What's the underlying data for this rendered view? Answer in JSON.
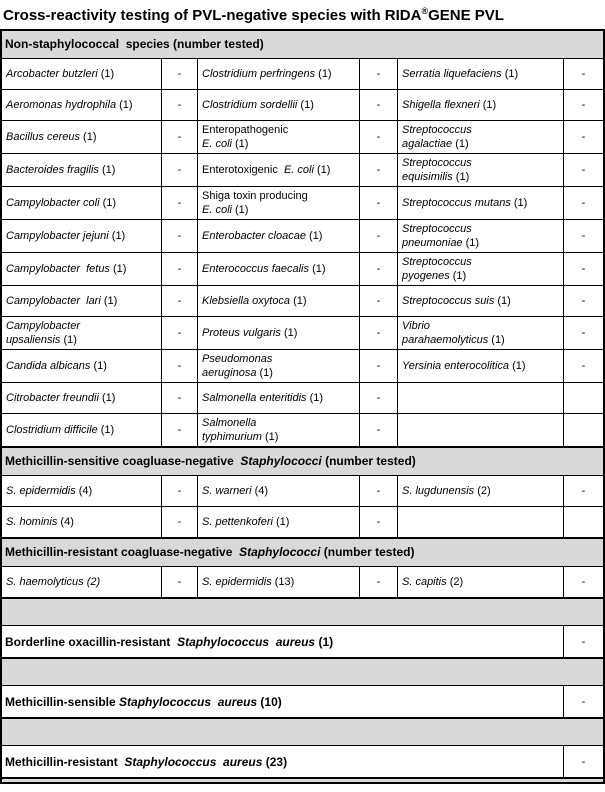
{
  "title": {
    "pre": "Cross-reactivity testing of PVL-negative species with RIDA",
    "sup": "®",
    "post": "GENE PVL"
  },
  "colors": {
    "header_bg": "#d9d9d9",
    "border": "#000000",
    "text": "#000000",
    "background": "#ffffff"
  },
  "result_symbol": "-",
  "table": {
    "sections": [
      {
        "kind": "header",
        "segments": [
          {
            "t": "Non-staphylococcal  species (number tested)"
          }
        ]
      },
      {
        "kind": "rows",
        "rows": [
          [
            [
              {
                "t": "Arcobacter butzleri ",
                "i": true
              },
              {
                "t": "(1)"
              }
            ],
            "-",
            [
              {
                "t": "Clostridium perfringens ",
                "i": true
              },
              {
                "t": "(1)"
              }
            ],
            "-",
            [
              {
                "t": "Serratia liquefaciens ",
                "i": true
              },
              {
                "t": "(1)"
              }
            ],
            "-"
          ],
          [
            [
              {
                "t": "Aeromonas hydrophila ",
                "i": true
              },
              {
                "t": "(1)"
              }
            ],
            "-",
            [
              {
                "t": "Clostridium sordellii ",
                "i": true
              },
              {
                "t": "(1)"
              }
            ],
            "-",
            [
              {
                "t": "Shigella flexneri ",
                "i": true
              },
              {
                "t": "(1)"
              }
            ],
            "-"
          ],
          [
            [
              {
                "t": "Bacillus cereus ",
                "i": true
              },
              {
                "t": "(1)"
              }
            ],
            "-",
            [
              {
                "t": "Enteropathogenic\n"
              },
              {
                "t": "E. coli ",
                "i": true
              },
              {
                "t": "(1)"
              }
            ],
            "-",
            [
              {
                "t": "Streptococcus\nagalactiae ",
                "i": true
              },
              {
                "t": "(1)"
              }
            ],
            "-"
          ],
          [
            [
              {
                "t": "Bacteroides fragilis ",
                "i": true
              },
              {
                "t": "(1)"
              }
            ],
            "-",
            [
              {
                "t": "Enterotoxigenic  "
              },
              {
                "t": "E. coli ",
                "i": true
              },
              {
                "t": "(1)"
              }
            ],
            "-",
            [
              {
                "t": "Streptococcus\nequisimilis ",
                "i": true
              },
              {
                "t": "(1)"
              }
            ],
            "-"
          ],
          [
            [
              {
                "t": "Campylobacter coli ",
                "i": true
              },
              {
                "t": "(1)"
              }
            ],
            "-",
            [
              {
                "t": "Shiga toxin producing\n"
              },
              {
                "t": "E. coli ",
                "i": true
              },
              {
                "t": "(1)"
              }
            ],
            "-",
            [
              {
                "t": "Streptococcus mutans ",
                "i": true
              },
              {
                "t": "(1)"
              }
            ],
            "-"
          ],
          [
            [
              {
                "t": "Campylobacter jejuni ",
                "i": true
              },
              {
                "t": "(1)"
              }
            ],
            "-",
            [
              {
                "t": "Enterobacter cloacae ",
                "i": true
              },
              {
                "t": "(1)"
              }
            ],
            "-",
            [
              {
                "t": "Streptococcus\npneumoniae ",
                "i": true
              },
              {
                "t": "(1)"
              }
            ],
            "-"
          ],
          [
            [
              {
                "t": "Campylobacter  fetus ",
                "i": true
              },
              {
                "t": "(1)"
              }
            ],
            "-",
            [
              {
                "t": "Enterococcus faecalis ",
                "i": true
              },
              {
                "t": "(1)"
              }
            ],
            "-",
            [
              {
                "t": "Streptococcus\npyogenes ",
                "i": true
              },
              {
                "t": "(1)"
              }
            ],
            "-"
          ],
          [
            [
              {
                "t": "Campylobacter  lari ",
                "i": true
              },
              {
                "t": "(1)"
              }
            ],
            "-",
            [
              {
                "t": "Klebsiella oxytoca ",
                "i": true
              },
              {
                "t": "(1)"
              }
            ],
            "-",
            [
              {
                "t": "Streptococcus suis ",
                "i": true
              },
              {
                "t": "(1)"
              }
            ],
            "-"
          ],
          [
            [
              {
                "t": "Campylobacter\nupsaliensis ",
                "i": true
              },
              {
                "t": "(1)"
              }
            ],
            "-",
            [
              {
                "t": "Proteus vulgaris ",
                "i": true
              },
              {
                "t": "(1)"
              }
            ],
            "-",
            [
              {
                "t": "Vibrio\nparahaemolyticus ",
                "i": true
              },
              {
                "t": "(1)"
              }
            ],
            "-"
          ],
          [
            [
              {
                "t": "Candida albicans ",
                "i": true
              },
              {
                "t": "(1)"
              }
            ],
            "-",
            [
              {
                "t": "Pseudomonas\naeruginosa ",
                "i": true
              },
              {
                "t": "(1)"
              }
            ],
            "-",
            [
              {
                "t": "Yersinia enterocolitica ",
                "i": true
              },
              {
                "t": "(1)"
              }
            ],
            "-"
          ],
          [
            [
              {
                "t": "Citrobacter freundii ",
                "i": true
              },
              {
                "t": "(1)"
              }
            ],
            "-",
            [
              {
                "t": "Salmonella enteritidis ",
                "i": true
              },
              {
                "t": "(1)"
              }
            ],
            "-",
            [],
            ""
          ],
          [
            [
              {
                "t": "Clostridium difficile ",
                "i": true
              },
              {
                "t": "(1)"
              }
            ],
            "-",
            [
              {
                "t": "Salmonella\ntyphimurium ",
                "i": true
              },
              {
                "t": "(1)"
              }
            ],
            "-",
            [],
            ""
          ]
        ]
      },
      {
        "kind": "header",
        "segments": [
          {
            "t": "Methicillin-sensitive coagluase-negative  "
          },
          {
            "t": "Staphylococci",
            "i": true
          },
          {
            "t": " (number tested)"
          }
        ]
      },
      {
        "kind": "rows",
        "rows": [
          [
            [
              {
                "t": "S. epidermidis ",
                "i": true
              },
              {
                "t": "(4)"
              }
            ],
            "-",
            [
              {
                "t": "S. warneri ",
                "i": true
              },
              {
                "t": "(4)"
              }
            ],
            "-",
            [
              {
                "t": "S. lugdunensis ",
                "i": true
              },
              {
                "t": "(2)"
              }
            ],
            "-"
          ],
          [
            [
              {
                "t": "S. hominis ",
                "i": true
              },
              {
                "t": "(4)"
              }
            ],
            "-",
            [
              {
                "t": "S. pettenkoferi ",
                "i": true
              },
              {
                "t": "(1)"
              }
            ],
            "-",
            [],
            ""
          ]
        ]
      },
      {
        "kind": "header",
        "segments": [
          {
            "t": "Methicillin-resistant coagluase-negative  "
          },
          {
            "t": "Staphylococci",
            "i": true
          },
          {
            "t": " (number tested)"
          }
        ]
      },
      {
        "kind": "rows",
        "rows": [
          [
            [
              {
                "t": "S. haemolyticus (2)",
                "i": true
              }
            ],
            "-",
            [
              {
                "t": "S. epidermidis ",
                "i": true
              },
              {
                "t": "(13)"
              }
            ],
            "-",
            [
              {
                "t": "S. capitis ",
                "i": true
              },
              {
                "t": "(2)"
              }
            ],
            "-"
          ]
        ]
      },
      {
        "kind": "spacer"
      },
      {
        "kind": "summary",
        "segments": [
          {
            "t": "Borderline oxacillin-resistant  "
          },
          {
            "t": "Staphylococcus  aureus",
            "i": true
          },
          {
            "t": " (1)"
          }
        ],
        "result": "-"
      },
      {
        "kind": "spacer"
      },
      {
        "kind": "summary",
        "segments": [
          {
            "t": "Methicillin-sensible "
          },
          {
            "t": "Staphylococcus  aureus",
            "i": true
          },
          {
            "t": " (10)"
          }
        ],
        "result": "-"
      },
      {
        "kind": "spacer"
      },
      {
        "kind": "summary",
        "segments": [
          {
            "t": "Methicillin-resistant  "
          },
          {
            "t": "Staphylococcus  aureus",
            "i": true
          },
          {
            "t": " (23)"
          }
        ],
        "result": "-"
      },
      {
        "kind": "spacer",
        "variant": "thin"
      }
    ]
  }
}
